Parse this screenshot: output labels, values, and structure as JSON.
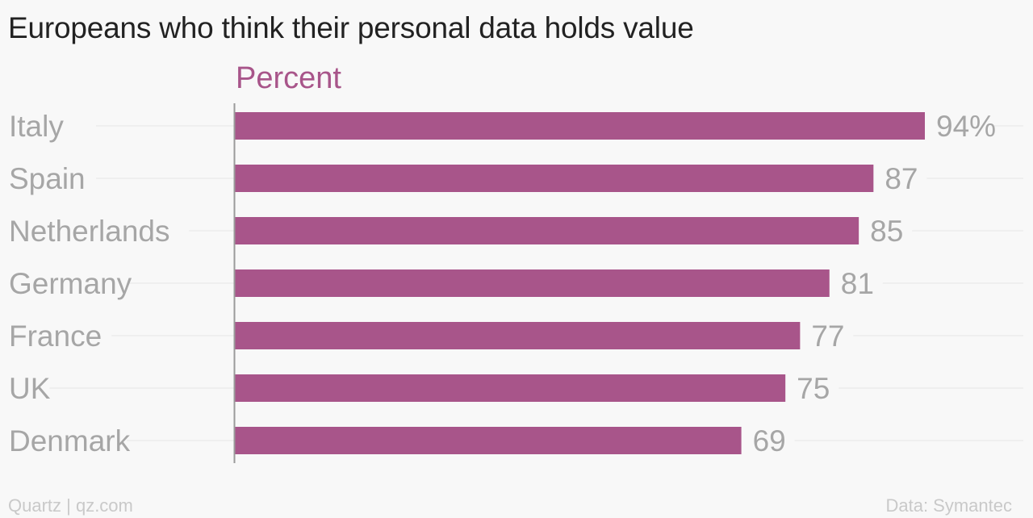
{
  "header": {
    "title": "Europeans who think their personal data holds value",
    "unit_label": "Percent"
  },
  "footer": {
    "source_left": "Quartz | qz.com",
    "source_right": "Data: Symantec"
  },
  "colors": {
    "bar": "#a8558a",
    "category_text": "#a6a6a6",
    "value_text": "#a6a6a6",
    "gridline": "#e6e6e6",
    "axis": "#9a9a9a"
  },
  "chart_data": {
    "type": "bar",
    "orientation": "horizontal",
    "categories": [
      "Italy",
      "Spain",
      "Netherlands",
      "Germany",
      "France",
      "UK",
      "Denmark"
    ],
    "values": [
      94,
      87,
      85,
      81,
      77,
      75,
      69
    ],
    "value_labels": [
      "94%",
      "87",
      "85",
      "81",
      "77",
      "75",
      "69"
    ],
    "title": "Europeans who think their personal data holds value",
    "xlabel": "Percent",
    "ylabel": "",
    "xlim": [
      0,
      94
    ],
    "grid": true,
    "legend": "none"
  }
}
